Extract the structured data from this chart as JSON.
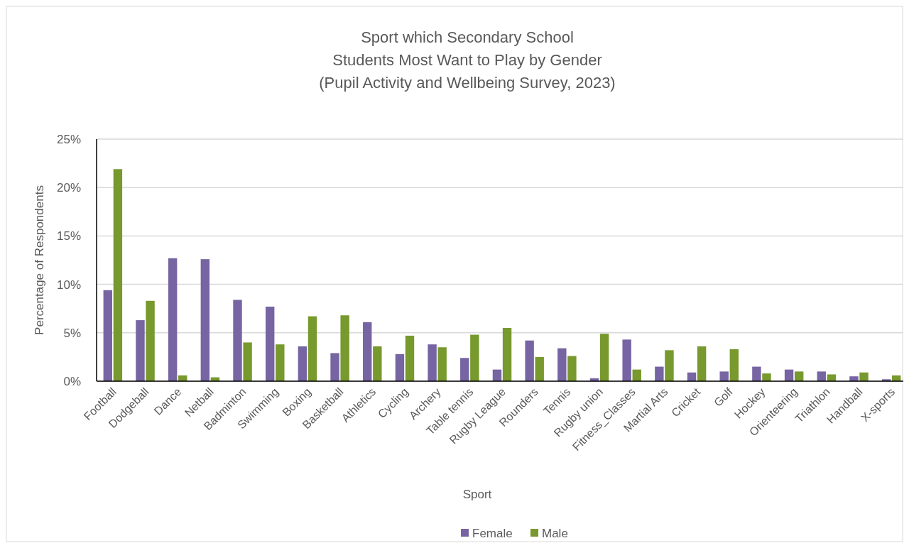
{
  "chart_data": {
    "type": "bar",
    "title": "Sport which Secondary School\nStudents Most Want to Play by Gender\n(Pupil Activity and Wellbeing Survey, 2023)",
    "xlabel": "Sport",
    "ylabel": "Percentage of Respondents",
    "categories": [
      "Football",
      "Dodgeball",
      "Dance",
      "Netball",
      "Badminton",
      "Swimming",
      "Boxing",
      "Basketball",
      "Athletics",
      "Cycling",
      "Archery",
      "Table tennis",
      "Rugby League",
      "Rounders",
      "Tennis",
      "Rugby union",
      "Fitness_Classes",
      "Martial Arts",
      "Cricket",
      "Golf",
      "Hockey",
      "Orienteering",
      "Triathlon",
      "Handball",
      "X-sports"
    ],
    "series": [
      {
        "name": "Female",
        "color": "#7764a2",
        "values": [
          9.4,
          6.3,
          12.7,
          12.6,
          8.4,
          7.7,
          3.6,
          2.9,
          6.1,
          2.8,
          3.8,
          2.4,
          1.2,
          4.2,
          3.4,
          0.3,
          4.3,
          1.5,
          0.9,
          1.0,
          1.5,
          1.2,
          1.0,
          0.5,
          0.2
        ]
      },
      {
        "name": "Male",
        "color": "#77992d",
        "values": [
          21.9,
          8.3,
          0.6,
          0.4,
          4.0,
          3.8,
          6.7,
          6.8,
          3.6,
          4.7,
          3.5,
          4.8,
          5.5,
          2.5,
          2.6,
          4.9,
          1.2,
          3.2,
          3.6,
          3.3,
          0.8,
          1.0,
          0.7,
          0.9,
          0.6
        ]
      }
    ],
    "ylim": [
      0,
      25
    ],
    "yticks": [
      {
        "value": 0,
        "label": "0%"
      },
      {
        "value": 5,
        "label": "5%"
      },
      {
        "value": 10,
        "label": "10%"
      },
      {
        "value": 15,
        "label": "15%"
      },
      {
        "value": 20,
        "label": "20%"
      },
      {
        "value": 25,
        "label": "25%"
      }
    ],
    "grid": "y",
    "legend": "bottom"
  }
}
